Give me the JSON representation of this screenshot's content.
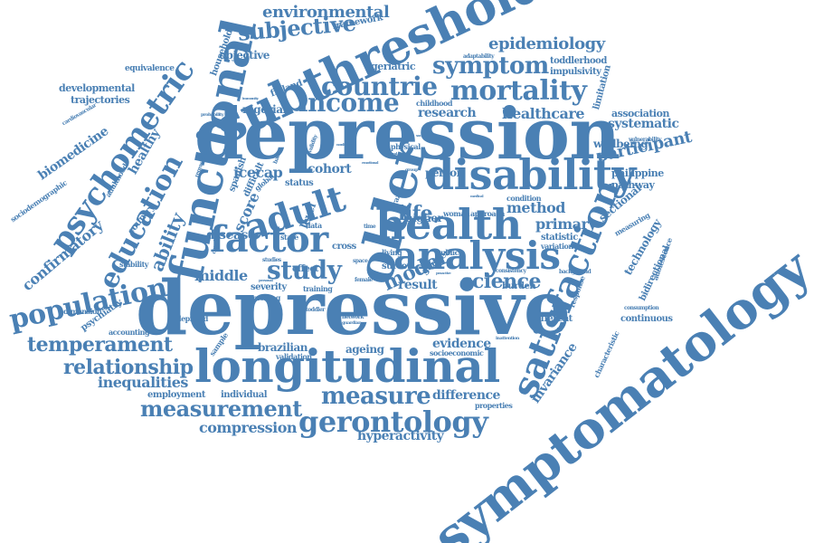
{
  "cloud": {
    "color": "#4a80b4",
    "words": [
      {
        "text": "depression",
        "weight": 100
      },
      {
        "text": "depressive",
        "weight": 100
      },
      {
        "text": "symptomatology",
        "weight": 90
      },
      {
        "text": "longitudinal",
        "weight": 80
      },
      {
        "text": "subthreshold",
        "weight": 70
      },
      {
        "text": "functional",
        "weight": 65
      },
      {
        "text": "disability",
        "weight": 62
      },
      {
        "text": "older",
        "weight": 60
      },
      {
        "text": "satisfaction",
        "weight": 60
      },
      {
        "text": "health",
        "weight": 60
      },
      {
        "text": "analysis",
        "weight": 55
      },
      {
        "text": "adult",
        "weight": 55
      },
      {
        "text": "factor",
        "weight": 50
      },
      {
        "text": "income",
        "weight": 45
      },
      {
        "text": "gerontology",
        "weight": 42
      },
      {
        "text": "mortality",
        "weight": 40
      },
      {
        "text": "psychometric",
        "weight": 40
      },
      {
        "text": "countrie",
        "weight": 40
      },
      {
        "text": "education",
        "weight": 38
      },
      {
        "text": "population",
        "weight": 38
      },
      {
        "text": "study",
        "weight": 36
      },
      {
        "text": "measure",
        "weight": 36
      },
      {
        "text": "measurement",
        "weight": 30
      },
      {
        "text": "temperament",
        "weight": 30
      },
      {
        "text": "relationship",
        "weight": 28
      },
      {
        "text": "symptom",
        "weight": 28
      },
      {
        "text": "subjective",
        "weight": 26
      },
      {
        "text": "environmental",
        "weight": 24
      },
      {
        "text": "epidemiology",
        "weight": 22
      },
      {
        "text": "participant",
        "weight": 22
      },
      {
        "text": "ability",
        "weight": 24
      },
      {
        "text": "science",
        "weight": 24
      },
      {
        "text": "model",
        "weight": 24
      },
      {
        "text": "life",
        "weight": 24
      },
      {
        "text": "healthcare",
        "weight": 20
      },
      {
        "text": "primary",
        "weight": 20
      },
      {
        "text": "method",
        "weight": 20
      },
      {
        "text": "middle",
        "weight": 20
      },
      {
        "text": "inequalities",
        "weight": 18
      },
      {
        "text": "compression",
        "weight": 18
      },
      {
        "text": "evidence",
        "weight": 16
      },
      {
        "text": "difference",
        "weight": 14
      },
      {
        "text": "hyperactivity",
        "weight": 14
      },
      {
        "text": "cohort",
        "weight": 18
      },
      {
        "text": "icecap",
        "weight": 18
      },
      {
        "text": "disease",
        "weight": 16
      },
      {
        "text": "research",
        "weight": 16
      },
      {
        "text": "systematic",
        "weight": 16
      },
      {
        "text": "invariance",
        "weight": 16
      },
      {
        "text": "confirmatory",
        "weight": 18
      },
      {
        "text": "biomedicine",
        "weight": 16
      },
      {
        "text": "healthy",
        "weight": 16
      },
      {
        "text": "score",
        "weight": 18
      },
      {
        "text": "result",
        "weight": 16
      },
      {
        "text": "ageing",
        "weight": 14
      },
      {
        "text": "brazilian",
        "weight": 14
      },
      {
        "text": "sectional",
        "weight": 14
      },
      {
        "text": "technology",
        "weight": 12
      },
      {
        "text": "developmental",
        "weight": 12
      },
      {
        "text": "trajectories",
        "weight": 12
      },
      {
        "text": "equivalence",
        "weight": 10
      },
      {
        "text": "household",
        "weight": 10
      },
      {
        "text": "objective",
        "weight": 12
      },
      {
        "text": "framework",
        "weight": 10
      },
      {
        "text": "geriatric",
        "weight": 12
      },
      {
        "text": "adaptability",
        "weight": 6
      },
      {
        "text": "toddlerhood",
        "weight": 10
      },
      {
        "text": "impulsivity",
        "weight": 10
      },
      {
        "text": "limitation",
        "weight": 12
      },
      {
        "text": "association",
        "weight": 12
      },
      {
        "text": "wellbeing",
        "weight": 12
      },
      {
        "text": "vulnerability",
        "weight": 6
      },
      {
        "text": "philippine",
        "weight": 10
      },
      {
        "text": "pathway",
        "weight": 10
      },
      {
        "text": "person",
        "weight": 12
      },
      {
        "text": "nigerian",
        "weight": 12
      },
      {
        "text": "finland",
        "weight": 10
      },
      {
        "text": "childhood",
        "weight": 8
      },
      {
        "text": "physical",
        "weight": 8
      },
      {
        "text": "woman",
        "weight": 8
      },
      {
        "text": "approach",
        "weight": 8
      },
      {
        "text": "condition",
        "weight": 8
      },
      {
        "text": "higher",
        "weight": 12
      },
      {
        "text": "statistic",
        "weight": 10
      },
      {
        "text": "variation",
        "weight": 8
      },
      {
        "text": "consistency",
        "weight": 6
      },
      {
        "text": "background",
        "weight": 6
      },
      {
        "text": "public",
        "weight": 8
      },
      {
        "text": "survey",
        "weight": 10
      },
      {
        "text": "gender",
        "weight": 10
      },
      {
        "text": "burden",
        "weight": 10
      },
      {
        "text": "different",
        "weight": 10
      },
      {
        "text": "continuous",
        "weight": 10
      },
      {
        "text": "consumption",
        "weight": 6
      },
      {
        "text": "bidirectional",
        "weight": 10
      },
      {
        "text": "adolescence",
        "weight": 8
      },
      {
        "text": "characteristic",
        "weight": 8
      },
      {
        "text": "response",
        "weight": 8
      },
      {
        "text": "measuring",
        "weight": 8
      },
      {
        "text": "stability",
        "weight": 8
      },
      {
        "text": "country",
        "weight": 10
      },
      {
        "text": "adulthood",
        "weight": 8
      },
      {
        "text": "sociodemographic",
        "weight": 8
      },
      {
        "text": "cardiovascular",
        "weight": 6
      },
      {
        "text": "probability",
        "weight": 5
      },
      {
        "text": "regression",
        "weight": 6
      },
      {
        "text": "spanish",
        "weight": 10
      },
      {
        "text": "difficult",
        "weight": 10
      },
      {
        "text": "conclusion",
        "weight": 6
      },
      {
        "text": "global",
        "weight": 8
      },
      {
        "text": "status",
        "weight": 10
      },
      {
        "text": "level",
        "weight": 12
      },
      {
        "text": "state",
        "weight": 8
      },
      {
        "text": "data",
        "weight": 8
      },
      {
        "text": "cross",
        "weight": 10
      },
      {
        "text": "time",
        "weight": 6
      },
      {
        "text": "living",
        "weight": 8
      },
      {
        "text": "space",
        "weight": 6
      },
      {
        "text": "studies",
        "weight": 6
      },
      {
        "text": "effect",
        "weight": 10
      },
      {
        "text": "severity",
        "weight": 10
      },
      {
        "text": "training",
        "weight": 8
      },
      {
        "text": "female",
        "weight": 6
      },
      {
        "text": "smoking",
        "weight": 8
      },
      {
        "text": "toddler",
        "weight": 6
      },
      {
        "text": "deprived",
        "weight": 8
      },
      {
        "text": "network",
        "weight": 6
      },
      {
        "text": "guardian",
        "weight": 5
      },
      {
        "text": "sample",
        "weight": 8
      },
      {
        "text": "accounting",
        "weight": 8
      },
      {
        "text": "dimension",
        "weight": 8
      },
      {
        "text": "psychiatry",
        "weight": 10
      },
      {
        "text": "validation",
        "weight": 8
      },
      {
        "text": "socioeconomic",
        "weight": 8
      },
      {
        "text": "inattention",
        "weight": 5
      },
      {
        "text": "properties",
        "weight": 8
      },
      {
        "text": "employment",
        "weight": 10
      },
      {
        "text": "individual",
        "weight": 10
      },
      {
        "text": "badan",
        "weight": 6
      },
      {
        "text": "brazil",
        "weight": 8
      },
      {
        "text": "validity",
        "weight": 6
      },
      {
        "text": "group",
        "weight": 5
      },
      {
        "text": "nonlinear",
        "weight": 4
      },
      {
        "text": "immunity",
        "weight": 4
      },
      {
        "text": "emotional",
        "weight": 4
      },
      {
        "text": "medical",
        "weight": 4
      },
      {
        "text": "personal",
        "weight": 4
      },
      {
        "text": "proactive",
        "weight": 4
      },
      {
        "text": "cultural",
        "weight": 4
      },
      {
        "text": "social",
        "weight": 4
      }
    ]
  }
}
